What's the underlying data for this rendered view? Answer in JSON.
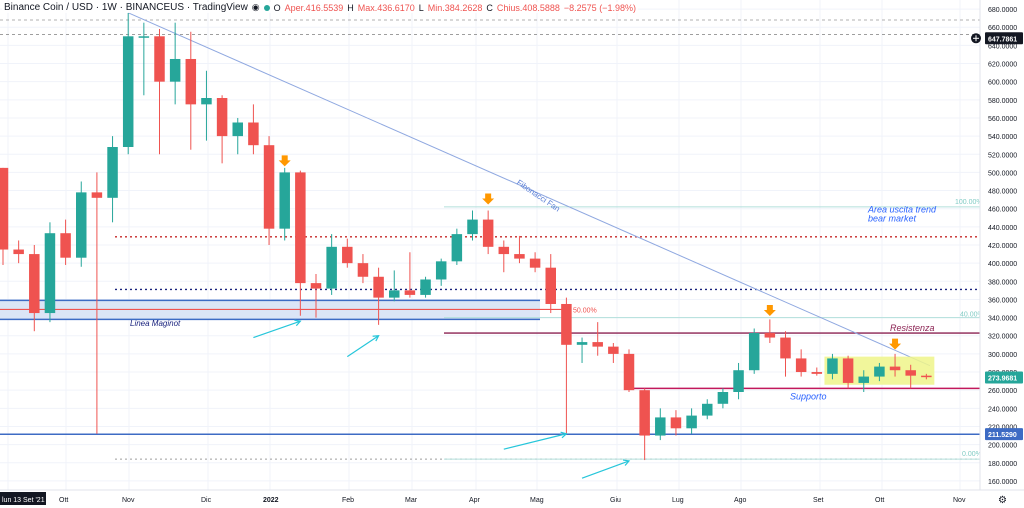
{
  "header": {
    "title": "Binance Coin / USD · 1W · BINANCEUS · TradingView",
    "open_label": "O",
    "open": "Aper.416.5539",
    "high_label": "H",
    "high": "Max.436.6170",
    "low_label": "L",
    "low": "Min.384.2628",
    "close_label": "C",
    "close": "Chius.408.5888",
    "change": "−8.2575 (−1.98%)"
  },
  "colors": {
    "up": "#26a69a",
    "down": "#ef5350",
    "fan": "#8fa8e0",
    "fib": "#b2dfdb",
    "maginot_fill": "#dbe5f6",
    "maginot_line": "#3d6bc4",
    "resistance": "#8b2252",
    "support": "#c2185b",
    "box": "#eef58a",
    "orange": "#ff9800",
    "cyan": "#26c6da",
    "label_dark": "#131722",
    "label_blue": "#2962ff"
  },
  "chart_data": {
    "type": "candlestick",
    "x_axis": [
      "13 Set '21",
      "Ott",
      "Nov",
      "Dic",
      "2022",
      "Feb",
      "Mar",
      "Apr",
      "Mag",
      "Giu",
      "Lug",
      "Ago",
      "Set",
      "Ott",
      "Nov"
    ],
    "y_axis_ticks": [
      160,
      180,
      200,
      220,
      240,
      260,
      280,
      300,
      320,
      340,
      360,
      380,
      400,
      420,
      440,
      460,
      480,
      500,
      520,
      540,
      560,
      580,
      600,
      620,
      640,
      660,
      680
    ],
    "ylim": [
      150,
      690
    ],
    "price_labels": [
      {
        "value": 647.7861,
        "text": "647.7861",
        "style": "dark"
      },
      {
        "value": 273.9681,
        "text": "273.9681",
        "style": "teal"
      },
      {
        "value": 211.529,
        "text": "211.5290",
        "style": "blue"
      }
    ],
    "candles": [
      {
        "o": 505,
        "h": 505,
        "l": 398,
        "c": 415
      },
      {
        "o": 415,
        "h": 425,
        "l": 400,
        "c": 410
      },
      {
        "o": 410,
        "h": 420,
        "l": 325,
        "c": 345
      },
      {
        "o": 345,
        "h": 445,
        "l": 335,
        "c": 433
      },
      {
        "o": 433,
        "h": 448,
        "l": 398,
        "c": 406
      },
      {
        "o": 406,
        "h": 490,
        "l": 396,
        "c": 478
      },
      {
        "o": 478,
        "h": 500,
        "l": 212,
        "c": 472
      },
      {
        "o": 472,
        "h": 540,
        "l": 445,
        "c": 528
      },
      {
        "o": 528,
        "h": 676,
        "l": 520,
        "c": 650
      },
      {
        "o": 650,
        "h": 665,
        "l": 585,
        "c": 650
      },
      {
        "o": 650,
        "h": 658,
        "l": 520,
        "c": 600
      },
      {
        "o": 600,
        "h": 665,
        "l": 575,
        "c": 625
      },
      {
        "o": 625,
        "h": 655,
        "l": 525,
        "c": 575
      },
      {
        "o": 575,
        "h": 612,
        "l": 535,
        "c": 582
      },
      {
        "o": 582,
        "h": 585,
        "l": 510,
        "c": 540
      },
      {
        "o": 540,
        "h": 560,
        "l": 520,
        "c": 555
      },
      {
        "o": 555,
        "h": 575,
        "l": 520,
        "c": 530
      },
      {
        "o": 530,
        "h": 540,
        "l": 420,
        "c": 438
      },
      {
        "o": 438,
        "h": 505,
        "l": 425,
        "c": 500
      },
      {
        "o": 500,
        "h": 502,
        "l": 342,
        "c": 378
      },
      {
        "o": 378,
        "h": 388,
        "l": 340,
        "c": 372
      },
      {
        "o": 372,
        "h": 432,
        "l": 365,
        "c": 418
      },
      {
        "o": 418,
        "h": 427,
        "l": 395,
        "c": 400
      },
      {
        "o": 400,
        "h": 410,
        "l": 378,
        "c": 385
      },
      {
        "o": 385,
        "h": 395,
        "l": 332,
        "c": 362
      },
      {
        "o": 362,
        "h": 392,
        "l": 358,
        "c": 370
      },
      {
        "o": 370,
        "h": 412,
        "l": 362,
        "c": 365
      },
      {
        "o": 365,
        "h": 385,
        "l": 362,
        "c": 382
      },
      {
        "o": 382,
        "h": 405,
        "l": 375,
        "c": 402
      },
      {
        "o": 402,
        "h": 438,
        "l": 398,
        "c": 432
      },
      {
        "o": 432,
        "h": 458,
        "l": 425,
        "c": 448
      },
      {
        "o": 448,
        "h": 458,
        "l": 410,
        "c": 418
      },
      {
        "o": 418,
        "h": 425,
        "l": 390,
        "c": 410
      },
      {
        "o": 410,
        "h": 430,
        "l": 400,
        "c": 405
      },
      {
        "o": 405,
        "h": 412,
        "l": 390,
        "c": 395
      },
      {
        "o": 395,
        "h": 410,
        "l": 345,
        "c": 355
      },
      {
        "o": 355,
        "h": 362,
        "l": 211,
        "c": 310
      },
      {
        "o": 310,
        "h": 318,
        "l": 290,
        "c": 313
      },
      {
        "o": 313,
        "h": 335,
        "l": 298,
        "c": 308
      },
      {
        "o": 308,
        "h": 312,
        "l": 290,
        "c": 300
      },
      {
        "o": 300,
        "h": 305,
        "l": 258,
        "c": 260
      },
      {
        "o": 260,
        "h": 262,
        "l": 183,
        "c": 210
      },
      {
        "o": 210,
        "h": 240,
        "l": 205,
        "c": 230
      },
      {
        "o": 230,
        "h": 238,
        "l": 210,
        "c": 218
      },
      {
        "o": 218,
        "h": 240,
        "l": 212,
        "c": 232
      },
      {
        "o": 232,
        "h": 250,
        "l": 228,
        "c": 245
      },
      {
        "o": 245,
        "h": 262,
        "l": 240,
        "c": 258
      },
      {
        "o": 258,
        "h": 290,
        "l": 250,
        "c": 282
      },
      {
        "o": 282,
        "h": 328,
        "l": 278,
        "c": 323
      },
      {
        "o": 323,
        "h": 338,
        "l": 312,
        "c": 318
      },
      {
        "o": 318,
        "h": 325,
        "l": 275,
        "c": 295
      },
      {
        "o": 295,
        "h": 305,
        "l": 275,
        "c": 280
      },
      {
        "o": 280,
        "h": 285,
        "l": 276,
        "c": 278
      },
      {
        "o": 278,
        "h": 300,
        "l": 272,
        "c": 295
      },
      {
        "o": 295,
        "h": 298,
        "l": 262,
        "c": 268
      },
      {
        "o": 268,
        "h": 282,
        "l": 258,
        "c": 275
      },
      {
        "o": 275,
        "h": 290,
        "l": 270,
        "c": 286
      },
      {
        "o": 286,
        "h": 300,
        "l": 275,
        "c": 282
      },
      {
        "o": 282,
        "h": 288,
        "l": 262,
        "c": 276
      },
      {
        "o": 276,
        "h": 278,
        "l": 272,
        "c": 275
      }
    ],
    "levels": {
      "red_dotted": 429,
      "navy_dotted": 371,
      "gray_dashed_top": 668,
      "gray_dashed_mid": 652,
      "gray_dashed_bottom": 184,
      "blue_support": 211.5,
      "maginot_top": 359,
      "maginot_bottom": 338,
      "maginot_red": 349,
      "resistance": 323,
      "support": 262,
      "fib_100": 462,
      "fib_50": 349,
      "fib_40": 340,
      "fib_0": 184
    },
    "fib_labels": {
      "fib_100": "100.00%",
      "fib_50": "50.00%",
      "fib_40": "40.00%",
      "fib_0": "0.00%"
    },
    "fan_label": "Fibonacci Fan",
    "annotations": {
      "area_uscita": "Area uscita trend\nbear market",
      "resistenza": "Resistenza",
      "supporto": "Supporto",
      "maginot": "Linea Maginot"
    },
    "consolidation_box": {
      "from_candle": 53,
      "to_candle": 59,
      "top": 297,
      "bottom": 266
    },
    "orange_arrows": [
      {
        "candle": 18,
        "value": 510
      },
      {
        "candle": 31,
        "value": 468
      },
      {
        "candle": 49,
        "value": 345
      },
      {
        "candle": 57,
        "value": 308
      }
    ],
    "cyan_arrows": [
      {
        "from_candle": 16,
        "from_value": 318,
        "to_candle": 19,
        "to_value": 336
      },
      {
        "from_candle": 22,
        "from_value": 297,
        "to_candle": 24,
        "to_value": 320
      },
      {
        "from_candle": 32,
        "from_value": 195,
        "to_candle": 36,
        "to_value": 212
      },
      {
        "from_candle": 37,
        "from_value": 163,
        "to_candle": 40,
        "to_value": 182
      }
    ]
  }
}
